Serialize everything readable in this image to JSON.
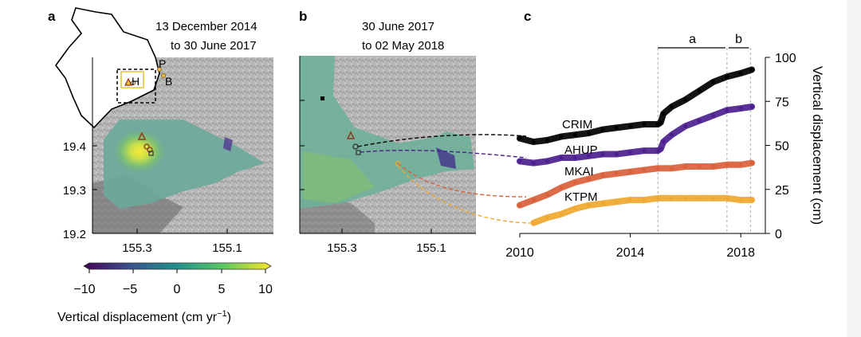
{
  "panels": {
    "a": {
      "letter": "a",
      "date_line1": "13 December 2014",
      "date_line2": "to 30 June 2017",
      "y_ticks": [
        "19.4",
        "19.3",
        "19.2"
      ],
      "x_ticks": [
        "155.3",
        "155.1"
      ],
      "inset_labels": [
        "P",
        "H",
        "B"
      ]
    },
    "b": {
      "letter": "b",
      "date_line1": "30 June 2017",
      "date_line2": "to 02 May 2018",
      "x_ticks": [
        "155.3",
        "155.1"
      ]
    },
    "c": {
      "letter": "c"
    }
  },
  "colorbar": {
    "ticks": [
      "−10",
      "−5",
      "0",
      "5",
      "10"
    ],
    "label_main": "Vertical displacement (cm yr",
    "label_sup": "−1",
    "label_close": ")",
    "colors": [
      "#440154",
      "#3b528b",
      "#21918c",
      "#5ec962",
      "#fde725"
    ]
  },
  "chart_data": {
    "type": "line",
    "xlabel": "",
    "ylabel": "Vertical displacement (cm)",
    "xlim": [
      2010,
      2018.6
    ],
    "ylim": [
      0,
      100
    ],
    "x_ticks": [
      2010,
      2014,
      2018
    ],
    "y_ticks": [
      0,
      25,
      50,
      75,
      100
    ],
    "periods": [
      {
        "label": "a",
        "start": 2015.0,
        "end": 2017.5
      },
      {
        "label": "b",
        "start": 2017.5,
        "end": 2018.35
      }
    ],
    "series": [
      {
        "name": "CRIM",
        "color": "#000000",
        "x": [
          2010.0,
          2010.5,
          2011.0,
          2011.5,
          2012.0,
          2012.5,
          2013.0,
          2013.5,
          2014.0,
          2014.5,
          2015.0,
          2015.1,
          2015.2,
          2015.5,
          2016.0,
          2016.5,
          2017.0,
          2017.5,
          2018.0,
          2018.4
        ],
        "y": [
          54,
          52,
          53,
          55,
          56,
          57,
          59,
          60,
          61,
          62,
          62,
          63,
          68,
          72,
          76,
          81,
          86,
          89,
          91,
          93
        ]
      },
      {
        "name": "AHUP",
        "color": "#4b1f8e",
        "x": [
          2010.0,
          2010.5,
          2011.0,
          2011.5,
          2012.0,
          2012.5,
          2013.0,
          2013.5,
          2014.0,
          2014.5,
          2015.0,
          2015.1,
          2015.2,
          2015.5,
          2016.0,
          2016.5,
          2017.0,
          2017.5,
          2018.0,
          2018.4
        ],
        "y": [
          41,
          40,
          41,
          43,
          43,
          44,
          45,
          45,
          46,
          47,
          47,
          48,
          52,
          56,
          61,
          64,
          67,
          70,
          71,
          72
        ]
      },
      {
        "name": "MKAI",
        "color": "#d9603b",
        "x": [
          2010.0,
          2010.5,
          2011.0,
          2011.5,
          2012.0,
          2012.5,
          2013.0,
          2013.5,
          2014.0,
          2014.5,
          2015.0,
          2015.5,
          2016.0,
          2016.5,
          2017.0,
          2017.5,
          2018.0,
          2018.4
        ],
        "y": [
          16,
          19,
          22,
          26,
          29,
          31,
          33,
          34,
          35,
          36,
          37,
          37,
          38,
          38,
          38,
          39,
          39,
          40
        ]
      },
      {
        "name": "KTPM",
        "color": "#f0a830",
        "x": [
          2010.5,
          2011.0,
          2011.5,
          2012.0,
          2012.5,
          2013.0,
          2013.5,
          2014.0,
          2014.5,
          2015.0,
          2015.5,
          2016.0,
          2016.5,
          2017.0,
          2017.5,
          2018.0,
          2018.4
        ],
        "y": [
          6,
          9,
          11,
          14,
          16,
          17,
          18,
          19,
          19,
          20,
          20,
          20,
          20,
          20,
          20,
          19,
          19
        ]
      }
    ]
  }
}
